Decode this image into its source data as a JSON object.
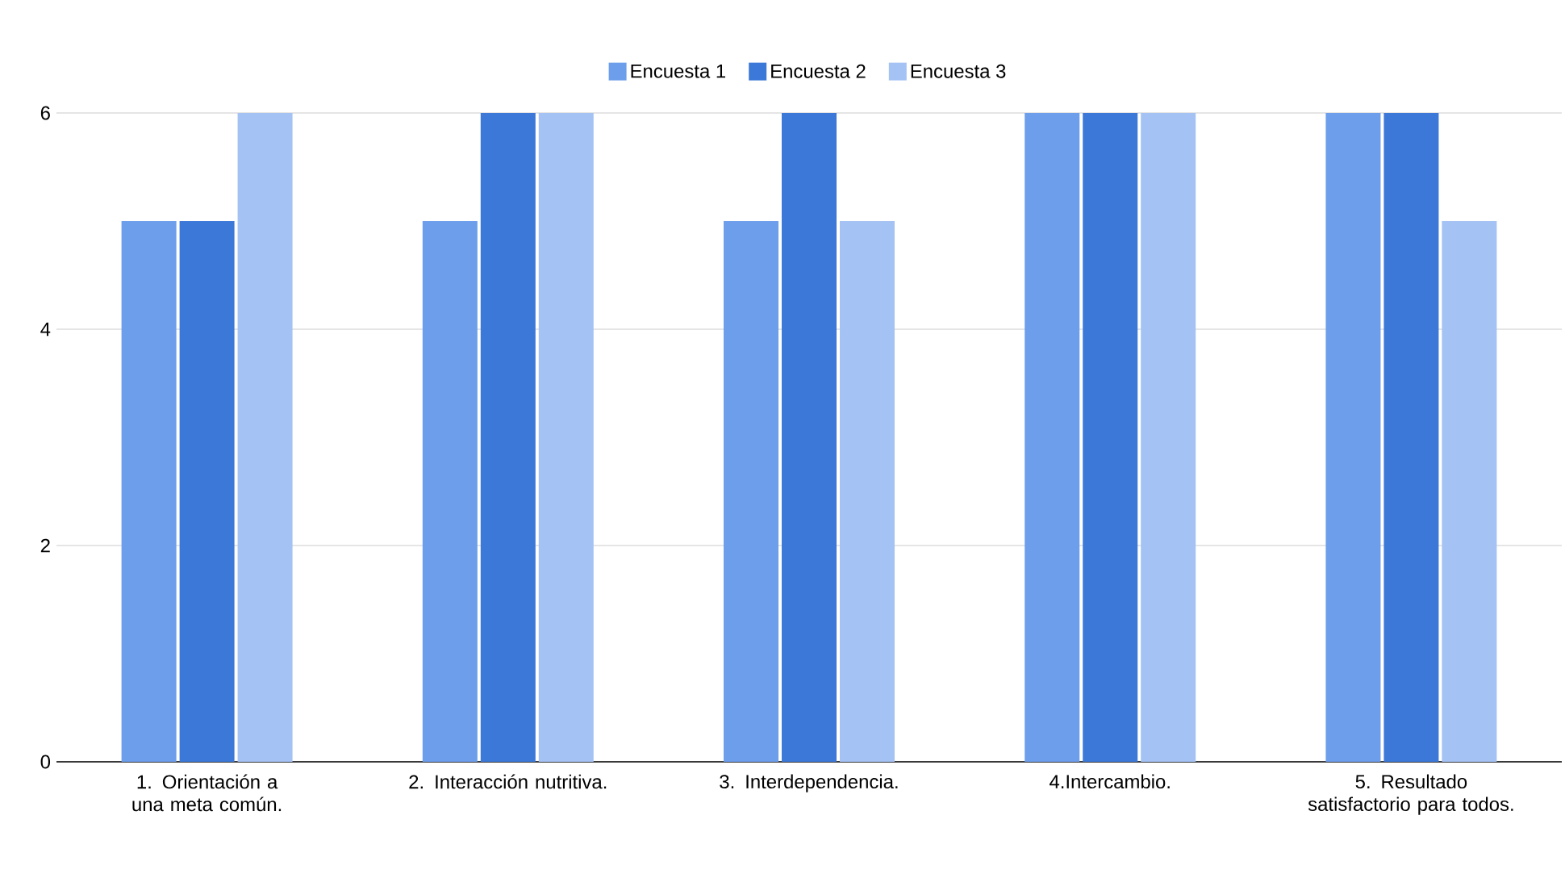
{
  "chart_data": {
    "type": "bar",
    "categories": [
      "1. Orientación a una meta común.",
      "2. Interacción nutritiva.",
      "3. Interdependencia.",
      "4.Intercambio.",
      "5. Resultado satisfactorio para todos."
    ],
    "series": [
      {
        "name": "Encuesta 1",
        "color": "#6d9eeb",
        "values": [
          5,
          5,
          5,
          6,
          6
        ]
      },
      {
        "name": "Encuesta 2",
        "color": "#3c78d8",
        "values": [
          5,
          6,
          6,
          6,
          6
        ]
      },
      {
        "name": "Encuesta 3",
        "color": "#a4c2f4",
        "values": [
          6,
          6,
          5,
          6,
          5
        ]
      }
    ],
    "ylim": [
      0,
      6
    ],
    "yticks": [
      0,
      2,
      4,
      6
    ],
    "grid": "y",
    "legend": "top"
  }
}
